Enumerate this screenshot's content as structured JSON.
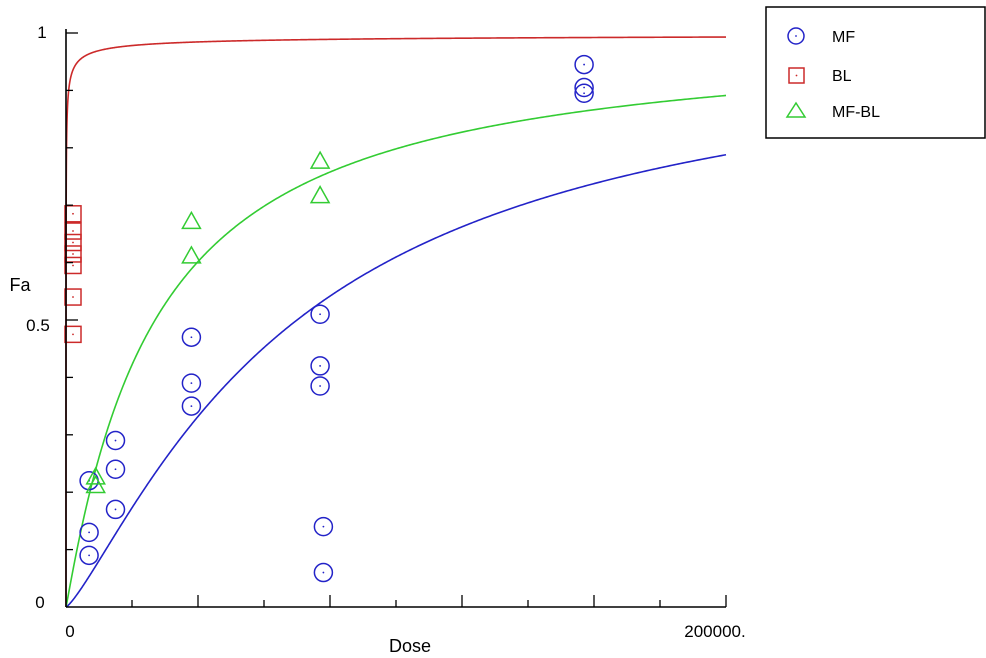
{
  "chart_data": {
    "type": "scatter",
    "xlabel": "Dose",
    "ylabel": "Fa",
    "xlim": [
      0,
      200000
    ],
    "ylim": [
      0,
      1
    ],
    "x_tick_labels": [
      "0",
      "200000."
    ],
    "y_tick_labels": [
      "0",
      "0.5",
      "1"
    ],
    "grid": false,
    "legend_position": "top-right",
    "series": [
      {
        "name": "MF",
        "marker": "circle",
        "color": "#2323c8",
        "points": [
          {
            "x": 7000,
            "y": 0.22
          },
          {
            "x": 7000,
            "y": 0.13
          },
          {
            "x": 7000,
            "y": 0.09
          },
          {
            "x": 15000,
            "y": 0.29
          },
          {
            "x": 15000,
            "y": 0.24
          },
          {
            "x": 15000,
            "y": 0.17
          },
          {
            "x": 38000,
            "y": 0.47
          },
          {
            "x": 38000,
            "y": 0.39
          },
          {
            "x": 38000,
            "y": 0.35
          },
          {
            "x": 77000,
            "y": 0.51
          },
          {
            "x": 77000,
            "y": 0.42
          },
          {
            "x": 77000,
            "y": 0.385
          },
          {
            "x": 78000,
            "y": 0.14
          },
          {
            "x": 78000,
            "y": 0.06
          },
          {
            "x": 157000,
            "y": 0.945
          },
          {
            "x": 157000,
            "y": 0.905
          },
          {
            "x": 157000,
            "y": 0.895
          }
        ],
        "curve": {
          "dm": 70000,
          "m": 1.25
        }
      },
      {
        "name": "BL",
        "marker": "square",
        "color": "#cc2a2a",
        "points": [
          {
            "x": 0,
            "y": 0.685
          },
          {
            "x": 0,
            "y": 0.655
          },
          {
            "x": 0,
            "y": 0.635
          },
          {
            "x": 0,
            "y": 0.615
          },
          {
            "x": 0,
            "y": 0.595
          },
          {
            "x": 0,
            "y": 0.54
          },
          {
            "x": 0,
            "y": 0.475
          }
        ],
        "curve": {
          "dm": 10,
          "m": 0.5
        }
      },
      {
        "name": "MF-BL",
        "marker": "triangle",
        "color": "#33cc33",
        "points": [
          {
            "x": 9000,
            "y": 0.225
          },
          {
            "x": 9000,
            "y": 0.21
          },
          {
            "x": 38000,
            "y": 0.67
          },
          {
            "x": 38000,
            "y": 0.61
          },
          {
            "x": 77000,
            "y": 0.775
          },
          {
            "x": 77000,
            "y": 0.715
          }
        ],
        "curve": {
          "dm": 27000,
          "m": 1.05
        }
      }
    ]
  }
}
